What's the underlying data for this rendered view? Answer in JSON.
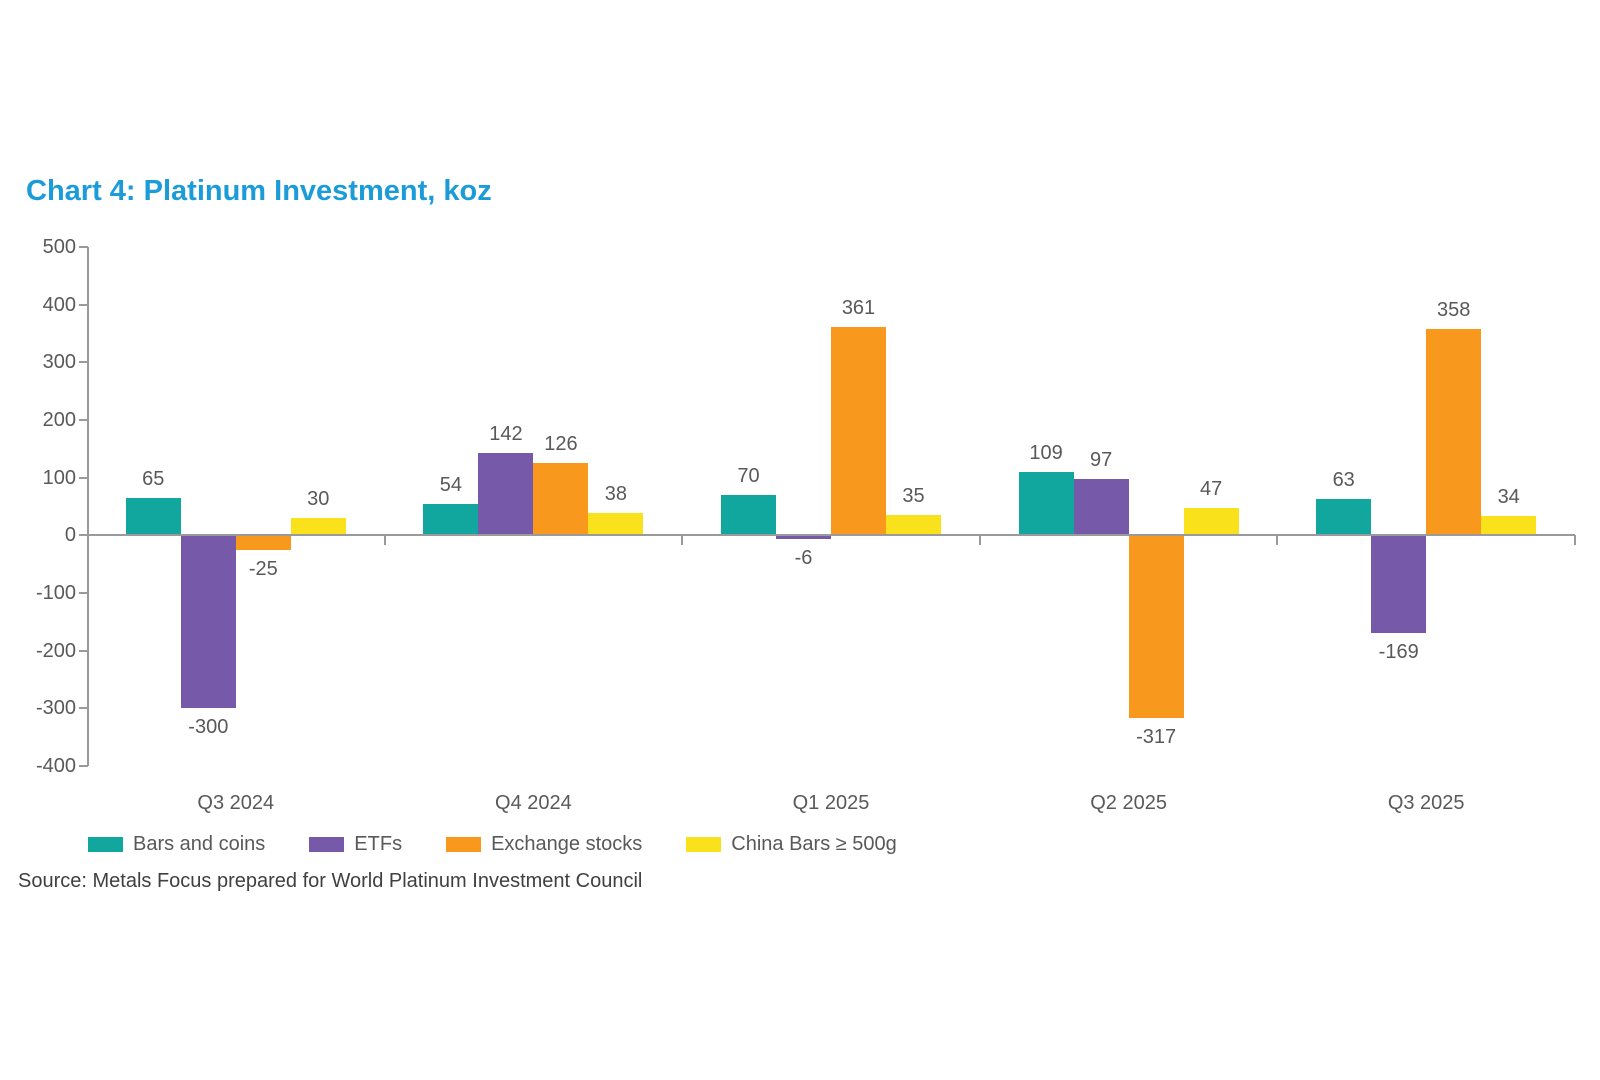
{
  "title": "Chart 4: Platinum Investment, koz",
  "source": "Source: Metals Focus prepared for World Platinum Investment Council",
  "colors": {
    "title": "#1B9CD9",
    "axis": "#9A9A9C",
    "tick_label": "#595959",
    "value_label": "#595959",
    "legend_label": "#58595B",
    "source_text": "#404040"
  },
  "chart_data": {
    "type": "bar",
    "title": "Chart 4: Platinum Investment, koz",
    "categories": [
      "Q3 2024",
      "Q4 2024",
      "Q1 2025",
      "Q2 2025",
      "Q3 2025"
    ],
    "series": [
      {
        "name": "Bars and coins",
        "color": "#11A79E",
        "values": [
          65,
          54,
          70,
          109,
          63
        ]
      },
      {
        "name": "ETFs",
        "color": "#7659A8",
        "values": [
          -300,
          142,
          -6,
          97,
          -169
        ]
      },
      {
        "name": "Exchange stocks",
        "color": "#F8981D",
        "values": [
          -25,
          126,
          361,
          -317,
          358
        ]
      },
      {
        "name": "China Bars ≥ 500g",
        "color": "#F9E11C",
        "values": [
          30,
          38,
          35,
          47,
          34
        ]
      }
    ],
    "ylim": [
      -400,
      500
    ],
    "yticks": [
      500,
      400,
      300,
      200,
      100,
      0,
      -100,
      -200,
      -300,
      -400
    ],
    "grid": false,
    "legend_position": "bottom",
    "value_labels": true,
    "xlabel": "",
    "ylabel": ""
  }
}
